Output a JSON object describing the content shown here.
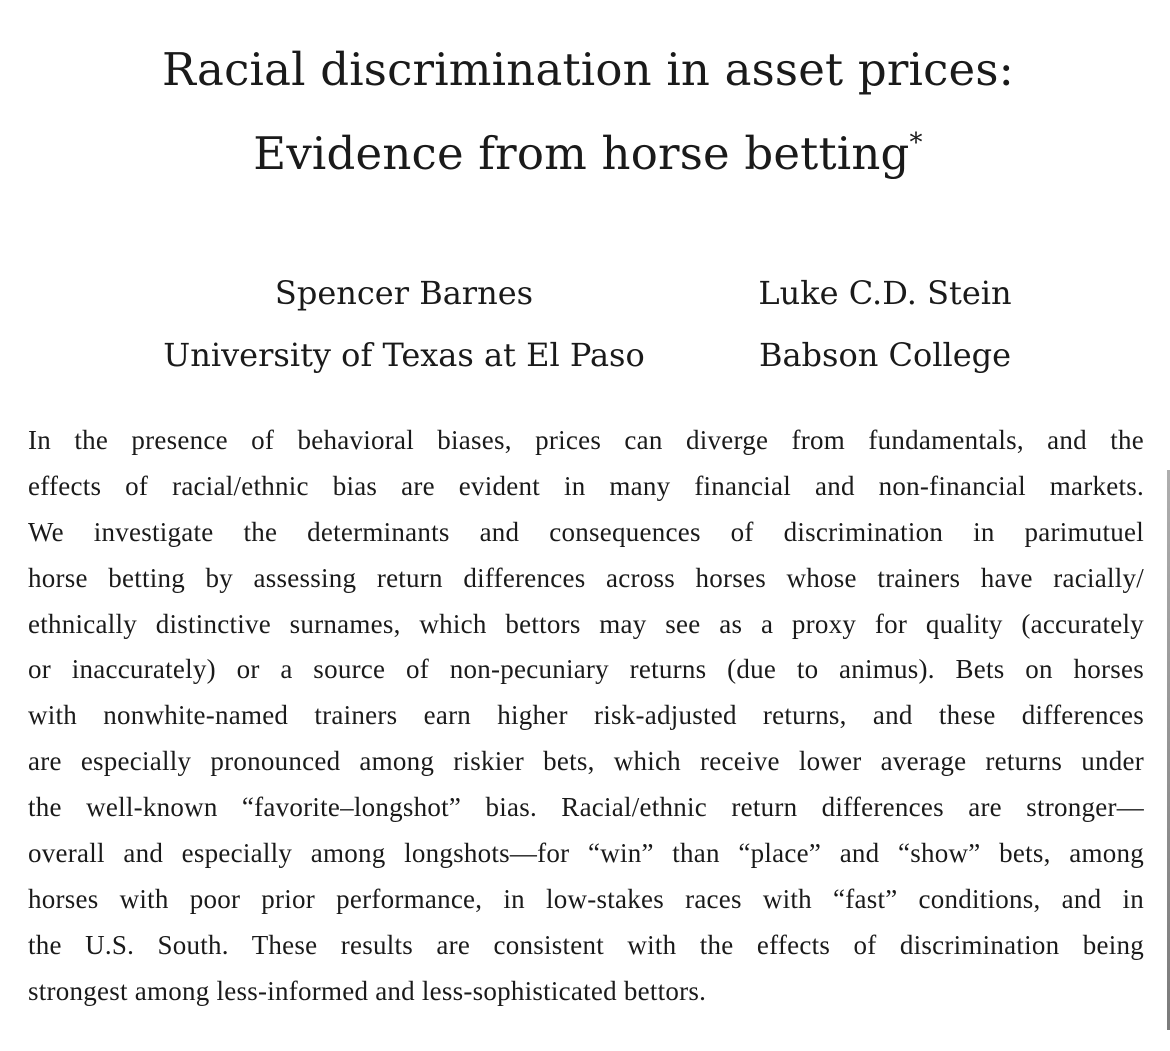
{
  "paper": {
    "title_line_1": "Racial discrimination in asset prices:",
    "title_line_2": "Evidence from horse betting",
    "title_footnote_mark": "*",
    "authors": [
      {
        "name": "Spencer Barnes",
        "affiliation": "University of Texas at El Paso"
      },
      {
        "name": "Luke C.D. Stein",
        "affiliation": "Babson College"
      }
    ],
    "abstract_lines": [
      "In the presence of behavioral biases, prices can diverge from fundamentals, and the",
      "effects of racial/ethnic bias are evident in many financial and non-financial markets.",
      "We investigate the determinants and consequences of discrimination in parimutuel",
      "horse betting by assessing return differences across horses whose trainers have racially/",
      "ethnically distinctive surnames, which bettors may see as a proxy for quality (accurately",
      "or inaccurately) or a source of non-pecuniary returns (due to animus). Bets on horses",
      "with nonwhite-named trainers earn higher risk-adjusted returns, and these differences",
      "are especially pronounced among riskier bets, which receive lower average returns under",
      "the well-known “favorite–longshot” bias. Racial/ethnic return differences are stronger—",
      "overall and especially among longshots—for “win” than “place” and “show” bets, among",
      "horses with poor prior performance, in low-stakes races with “fast” conditions, and in",
      "the U.S. South. These results are consistent with the effects of discrimination being",
      "strongest among less-informed and less-sophisticated bettors."
    ]
  }
}
